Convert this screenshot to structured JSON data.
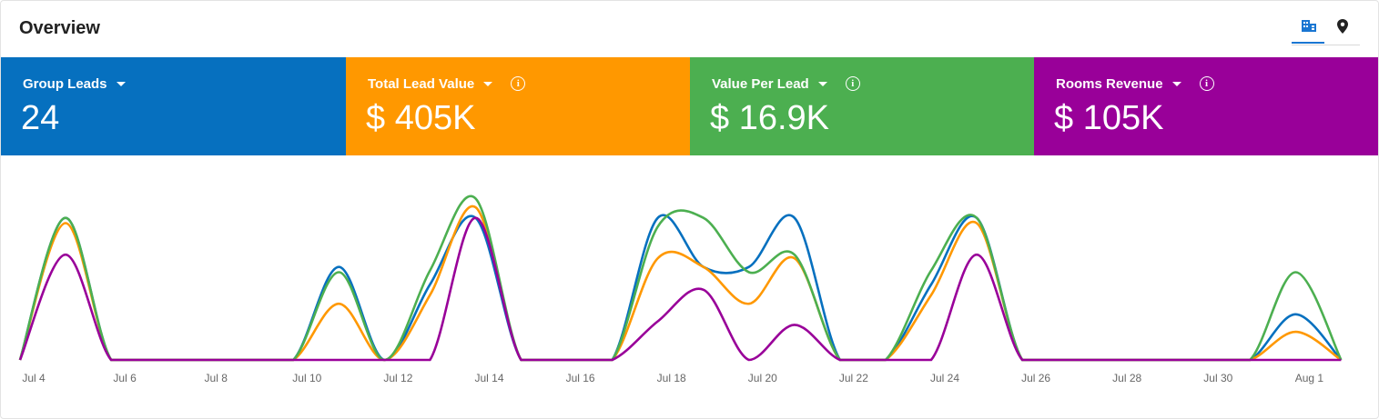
{
  "header": {
    "title": "Overview",
    "view_icons": [
      "building-icon",
      "map-pin-icon"
    ]
  },
  "tiles": [
    {
      "label": "Group Leads",
      "value": "24",
      "color": "#0670bf",
      "info": false
    },
    {
      "label": "Total Lead Value",
      "value": "$ 405K",
      "color": "#ff9800",
      "info": true
    },
    {
      "label": "Value Per Lead",
      "value": "$ 16.9K",
      "color": "#4caf50",
      "info": true
    },
    {
      "label": "Rooms Revenue",
      "value": "$ 105K",
      "color": "#990099",
      "info": true
    }
  ],
  "chart_data": {
    "type": "line",
    "x": [
      "Jul 4",
      "Jul 5",
      "Jul 6",
      "Jul 7",
      "Jul 8",
      "Jul 9",
      "Jul 10",
      "Jul 11",
      "Jul 12",
      "Jul 13",
      "Jul 14",
      "Jul 15",
      "Jul 16",
      "Jul 17",
      "Jul 18",
      "Jul 19",
      "Jul 20",
      "Jul 21",
      "Jul 22",
      "Jul 23",
      "Jul 24",
      "Jul 25",
      "Jul 26",
      "Jul 27",
      "Jul 28",
      "Jul 29",
      "Jul 30",
      "Jul 31",
      "Aug 1",
      "Aug 2"
    ],
    "tick_labels": [
      "Jul 4",
      "Jul 6",
      "Jul 8",
      "Jul 10",
      "Jul 12",
      "Jul 14",
      "Jul 16",
      "Jul 18",
      "Jul 20",
      "Jul 22",
      "Jul 24",
      "Jul 26",
      "Jul 28",
      "Jul 30",
      "Aug 1"
    ],
    "ylim": [
      0,
      1
    ],
    "grid": false,
    "legend": "none",
    "series": [
      {
        "color": "#0670bf",
        "values": [
          0,
          0.81,
          0,
          0,
          0,
          0,
          0,
          0.53,
          0,
          0.43,
          0.81,
          0,
          0,
          0,
          0.81,
          0.53,
          0.53,
          0.81,
          0,
          0,
          0.43,
          0.81,
          0,
          0,
          0,
          0,
          0,
          0,
          0.26,
          0
        ]
      },
      {
        "color": "#ff9800",
        "values": [
          0,
          0.78,
          0,
          0,
          0,
          0,
          0,
          0.32,
          0,
          0.37,
          0.87,
          0,
          0,
          0,
          0.58,
          0.53,
          0.32,
          0.58,
          0,
          0,
          0.37,
          0.78,
          0,
          0,
          0,
          0,
          0,
          0,
          0.16,
          0
        ]
      },
      {
        "color": "#4caf50",
        "values": [
          0,
          0.81,
          0,
          0,
          0,
          0,
          0,
          0.5,
          0,
          0.51,
          0.92,
          0,
          0,
          0,
          0.76,
          0.81,
          0.5,
          0.6,
          0,
          0,
          0.51,
          0.81,
          0,
          0,
          0,
          0,
          0,
          0,
          0.5,
          0
        ]
      },
      {
        "color": "#990099",
        "values": [
          0,
          0.6,
          0,
          0,
          0,
          0,
          0,
          0,
          0,
          0,
          0.81,
          0,
          0,
          0,
          0.22,
          0.4,
          0,
          0.2,
          0,
          0,
          0,
          0.6,
          0,
          0,
          0,
          0,
          0,
          0,
          0,
          0
        ]
      }
    ]
  }
}
